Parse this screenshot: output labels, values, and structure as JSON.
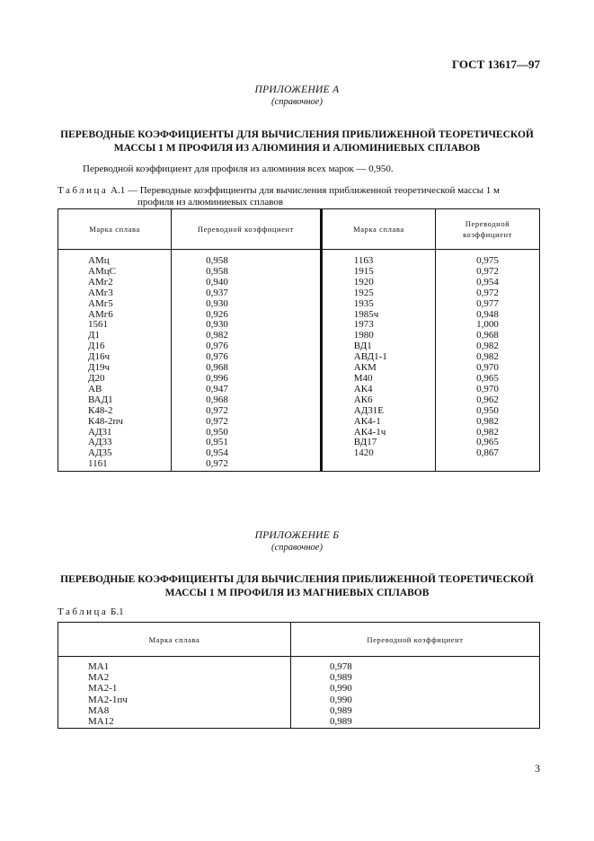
{
  "header": {
    "doc_code": "ГОСТ 13617—97"
  },
  "appendix_a": {
    "label": "ПРИЛОЖЕНИЕ А",
    "note": "(справочное)",
    "title_line1": "ПЕРЕВОДНЫЕ КОЭФФИЦИЕНТЫ ДЛЯ ВЫЧИСЛЕНИЯ ПРИБЛИЖЕННОЙ ТЕОРЕТИЧЕСКОЙ",
    "title_line2": "МАССЫ 1 М ПРОФИЛЯ ИЗ АЛЮМИНИЯ И АЛЮМИНИЕВЫХ СПЛАВОВ",
    "paragraph": "Переводной коэффициент для профиля из алюминия всех марок — 0,950.",
    "table_caption_word": "Таблица",
    "table_caption_line1": "А.1 — Переводные коэффициенты для вычисления приближенной теоретической массы 1 м",
    "table_caption_line2": "профиля из алюминиевых сплавов",
    "table": {
      "headers": [
        "Марка сплава",
        "Переводной коэффициент",
        "Марка сплава",
        "Переводной коэффициент"
      ],
      "left": [
        [
          "АМц",
          "0,958"
        ],
        [
          "АМцС",
          "0,958"
        ],
        [
          "АМг2",
          "0,940"
        ],
        [
          "АМг3",
          "0,937"
        ],
        [
          "АМг5",
          "0,930"
        ],
        [
          "АМг6",
          "0,926"
        ],
        [
          "1561",
          "0,930"
        ],
        [
          "Д1",
          "0,982"
        ],
        [
          "Д16",
          "0,976"
        ],
        [
          "Д16ч",
          "0,976"
        ],
        [
          "Д19ч",
          "0,968"
        ],
        [
          "Д20",
          "0,996"
        ],
        [
          "АВ",
          "0,947"
        ],
        [
          "ВАД1",
          "0,968"
        ],
        [
          "К48-2",
          "0,972"
        ],
        [
          "К48-2пч",
          "0,972"
        ],
        [
          "АД31",
          "0,950"
        ],
        [
          "АД33",
          "0,951"
        ],
        [
          "АД35",
          "0,954"
        ],
        [
          "1161",
          "0,972"
        ]
      ],
      "right": [
        [
          "1163",
          "0,975"
        ],
        [
          "1915",
          "0,972"
        ],
        [
          "1920",
          "0,954"
        ],
        [
          "1925",
          "0,972"
        ],
        [
          "1935",
          "0,977"
        ],
        [
          "1985ч",
          "0,948"
        ],
        [
          "1973",
          "1,000"
        ],
        [
          "1980",
          "0,968"
        ],
        [
          "ВД1",
          "0,982"
        ],
        [
          "АВД1-1",
          "0,982"
        ],
        [
          "АКМ",
          "0,970"
        ],
        [
          "М40",
          "0,965"
        ],
        [
          "АК4",
          "0,970"
        ],
        [
          "АК6",
          "0,962"
        ],
        [
          "АД31Е",
          "0,950"
        ],
        [
          "АК4-1",
          "0,982"
        ],
        [
          "АК4-1ч",
          "0,982"
        ],
        [
          "ВД17",
          "0,965"
        ],
        [
          "1420",
          "0,867"
        ]
      ]
    }
  },
  "appendix_b": {
    "label": "ПРИЛОЖЕНИЕ Б",
    "note": "(справочное)",
    "title_line1": "ПЕРЕВОДНЫЕ КОЭФФИЦИЕНТЫ ДЛЯ ВЫЧИСЛЕНИЯ ПРИБЛИЖЕННОЙ ТЕОРЕТИЧЕСКОЙ",
    "title_line2": "МАССЫ 1 М ПРОФИЛЯ ИЗ МАГНИЕВЫХ СПЛАВОВ",
    "table_caption_word": "Таблица",
    "table_caption_num": "Б.1",
    "table": {
      "headers": [
        "Марка сплава",
        "Переводной коэффициент"
      ],
      "rows": [
        [
          "МА1",
          "0,978"
        ],
        [
          "МА2",
          "0,989"
        ],
        [
          "МА2-1",
          "0,990"
        ],
        [
          "МА2-1пч",
          "0,990"
        ],
        [
          "МА8",
          "0,989"
        ],
        [
          "МА12",
          "0,989"
        ]
      ]
    }
  },
  "footer": {
    "page_number": "3"
  }
}
